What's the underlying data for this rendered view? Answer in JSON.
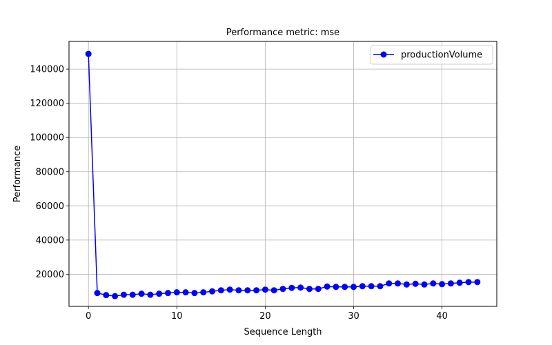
{
  "chart_data": {
    "type": "line",
    "title": "Performance metric: mse",
    "xlabel": "Sequence Length",
    "ylabel": "Performance",
    "xlim": [
      -2.2,
      46.2
    ],
    "ylim": [
      1200,
      156200
    ],
    "xticks": [
      0,
      10,
      20,
      30,
      40
    ],
    "yticks": [
      20000,
      40000,
      60000,
      80000,
      100000,
      120000,
      140000
    ],
    "grid": true,
    "legend_position": "top-right",
    "series": [
      {
        "name": "productionVolume",
        "color": "#0000ff",
        "marker": "circle",
        "x": [
          0,
          1,
          2,
          3,
          4,
          5,
          6,
          7,
          8,
          9,
          10,
          11,
          12,
          13,
          14,
          15,
          16,
          17,
          18,
          19,
          20,
          21,
          22,
          23,
          24,
          25,
          26,
          27,
          28,
          29,
          30,
          31,
          32,
          33,
          34,
          35,
          36,
          37,
          38,
          39,
          40,
          41,
          42,
          43,
          44
        ],
        "values": [
          148900,
          9000,
          7800,
          7200,
          8000,
          8000,
          8600,
          8000,
          8600,
          9000,
          9400,
          9400,
          9000,
          9400,
          10000,
          10600,
          11000,
          10600,
          10600,
          10600,
          11000,
          10600,
          11400,
          12000,
          12200,
          11400,
          11400,
          12800,
          12600,
          12600,
          12600,
          13000,
          13000,
          13000,
          14600,
          14600,
          14000,
          14400,
          14000,
          14600,
          14200,
          14600,
          15000,
          15400,
          15400
        ]
      }
    ]
  }
}
